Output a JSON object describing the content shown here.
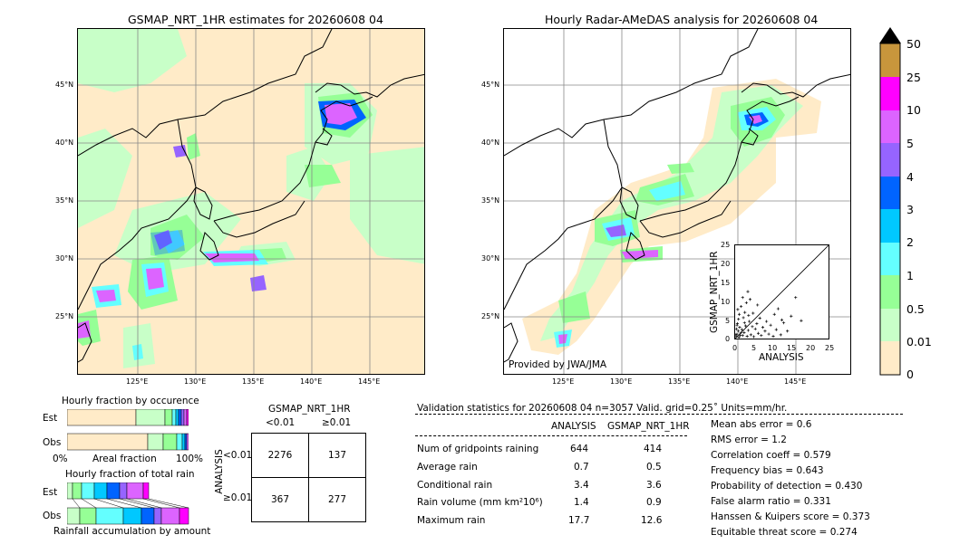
{
  "map_left": {
    "title": "GSMAP_NRT_1HR estimates for 20260608 04",
    "lat_labels": [
      "45°N",
      "40°N",
      "35°N",
      "30°N",
      "25°N"
    ],
    "lon_labels": [
      "125°E",
      "130°E",
      "135°E",
      "140°E",
      "145°E"
    ]
  },
  "map_right": {
    "title": "Hourly Radar-AMeDAS analysis for 20260608 04",
    "lat_labels": [
      "45°N",
      "40°N",
      "35°N",
      "30°N",
      "25°N"
    ],
    "lon_labels": [
      "125°E",
      "130°E",
      "135°E",
      "140°E",
      "145°E"
    ],
    "credit": "Provided by JWA/JMA"
  },
  "colorbar": {
    "labels": [
      "50",
      "25",
      "10",
      "5",
      "4",
      "3",
      "2",
      "1",
      "0.5",
      "0.01",
      "0"
    ],
    "colors": [
      "#000000",
      "#c8963c",
      "#ff00ff",
      "#dc64ff",
      "#9664ff",
      "#0064ff",
      "#00c8ff",
      "#64ffff",
      "#96ff96",
      "#c8ffc8",
      "#ffebc8"
    ]
  },
  "scatter": {
    "ylabel": "GSMAP_NRT_1HR",
    "xlabel": "ANALYSIS",
    "ticks": [
      "0",
      "5",
      "10",
      "15",
      "20",
      "25"
    ]
  },
  "fraction_occ": {
    "title": "Hourly fraction by occurence",
    "row_est": "Est",
    "row_obs": "Obs",
    "axis_left": "0%",
    "axis_mid": "Areal fraction",
    "axis_right": "100%"
  },
  "fraction_total": {
    "title": "Hourly fraction of total rain",
    "row_est": "Est",
    "row_obs": "Obs",
    "axis_label": "Rainfall accumulation by amount"
  },
  "contingency": {
    "title": "GSMAP_NRT_1HR",
    "col_lt": "<0.01",
    "col_ge": "≥0.01",
    "row_label": "ANALYSIS",
    "row_lt": "<0.01",
    "row_ge": "≥0.01",
    "a": "2276",
    "b": "137",
    "c": "367",
    "d": "277"
  },
  "validation": {
    "header": "Validation statistics for 20260608 04  n=3057 Valid. grid=0.25˚ Units=mm/hr.",
    "col_analysis": "ANALYSIS",
    "col_gsmap": "GSMAP_NRT_1HR",
    "rows": [
      {
        "label": "Num of gridpoints raining",
        "analysis": "644",
        "gsmap": "414"
      },
      {
        "label": "Average rain",
        "analysis": "0.7",
        "gsmap": "0.5"
      },
      {
        "label": "Conditional rain",
        "analysis": "3.4",
        "gsmap": "3.6"
      },
      {
        "label": "Rain volume (mm km²10⁶)",
        "analysis": "1.4",
        "gsmap": "0.9"
      },
      {
        "label": "Maximum rain",
        "analysis": "17.7",
        "gsmap": "12.6"
      }
    ],
    "scores": [
      "Mean abs error =    0.6",
      "RMS error =    1.2",
      "Correlation coeff =  0.579",
      "Frequency bias =  0.643",
      "Probability of detection =  0.430",
      "False alarm ratio =  0.331",
      "Hanssen & Kuipers score =  0.373",
      "Equitable threat score =  0.274"
    ]
  },
  "chart_data": {
    "type": "scatter",
    "xlabel": "ANALYSIS",
    "ylabel": "GSMAP_NRT_1HR",
    "xlim": [
      0,
      25
    ],
    "ylim": [
      0,
      25
    ],
    "points": [
      [
        0.3,
        0.5
      ],
      [
        0.5,
        1.2
      ],
      [
        0.8,
        2.0
      ],
      [
        1.0,
        0.4
      ],
      [
        1.2,
        3.0
      ],
      [
        0.6,
        4.0
      ],
      [
        1.5,
        1.5
      ],
      [
        2.0,
        0.8
      ],
      [
        0.4,
        2.6
      ],
      [
        0.9,
        5.2
      ],
      [
        1.8,
        2.4
      ],
      [
        2.4,
        1.6
      ],
      [
        2.8,
        3.4
      ],
      [
        3.2,
        0.6
      ],
      [
        1.1,
        6.5
      ],
      [
        0.7,
        7.8
      ],
      [
        2.2,
        5.6
      ],
      [
        3.5,
        2.2
      ],
      [
        3.8,
        4.6
      ],
      [
        4.2,
        1.0
      ],
      [
        4.6,
        3.2
      ],
      [
        5.0,
        0.5
      ],
      [
        1.6,
        8.6
      ],
      [
        2.6,
        7.0
      ],
      [
        5.4,
        2.6
      ],
      [
        5.8,
        4.0
      ],
      [
        6.2,
        1.4
      ],
      [
        3.0,
        9.6
      ],
      [
        6.6,
        5.5
      ],
      [
        7.0,
        0.8
      ],
      [
        7.4,
        3.0
      ],
      [
        2.0,
        11.0
      ],
      [
        8.0,
        2.0
      ],
      [
        8.4,
        4.6
      ],
      [
        4.0,
        10.5
      ],
      [
        3.4,
        12.6
      ],
      [
        9.0,
        1.2
      ],
      [
        9.5,
        3.6
      ],
      [
        10.2,
        0.6
      ],
      [
        6.0,
        9.0
      ],
      [
        11.0,
        2.4
      ],
      [
        11.5,
        8.0
      ],
      [
        12.2,
        1.0
      ],
      [
        13.0,
        4.2
      ],
      [
        14.0,
        2.0
      ],
      [
        15.0,
        6.0
      ],
      [
        16.2,
        11.0
      ],
      [
        17.7,
        4.8
      ],
      [
        0.2,
        1.0
      ],
      [
        1.3,
        0.9
      ],
      [
        0.5,
        3.6
      ],
      [
        2.5,
        4.2
      ],
      [
        4.8,
        6.8
      ],
      [
        3.6,
        6.2
      ],
      [
        10.5,
        6.5
      ],
      [
        12.5,
        5.0
      ]
    ]
  }
}
